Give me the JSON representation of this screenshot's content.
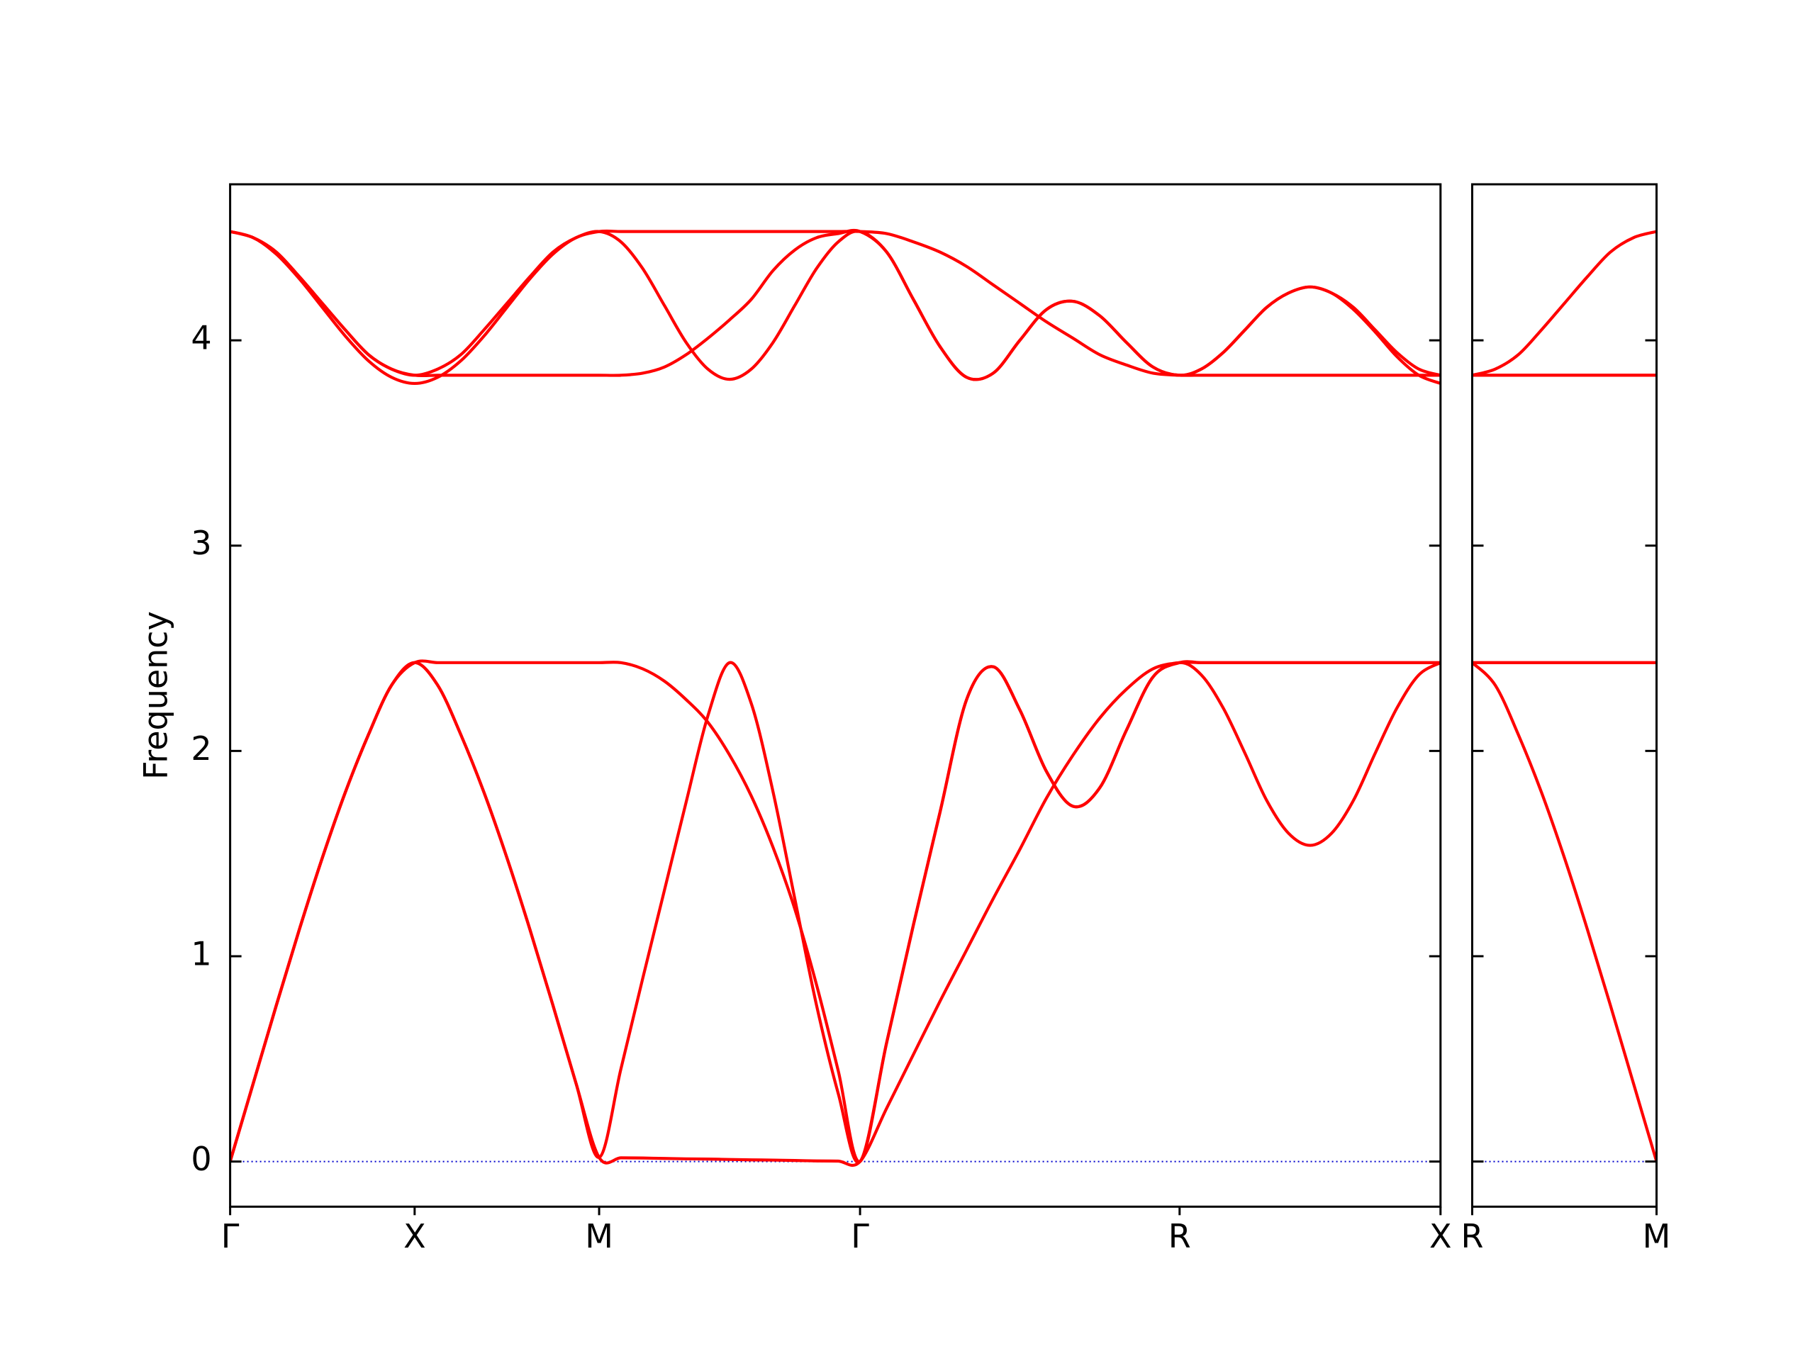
{
  "chart_data": [
    {
      "type": "line",
      "ylabel": "Frequency",
      "xlim": [
        0,
        3.2802
      ],
      "ylim": [
        -0.22,
        4.76
      ],
      "xticks": [
        {
          "value": 0,
          "label": "Γ"
        },
        {
          "value": 0.5,
          "label": "X"
        },
        {
          "value": 1.0,
          "label": "M"
        },
        {
          "value": 1.7071,
          "label": "Γ"
        },
        {
          "value": 2.5731,
          "label": "R"
        },
        {
          "value": 3.2802,
          "label": "X"
        }
      ],
      "yticks": [
        0,
        1,
        2,
        3,
        4
      ],
      "hline": 0,
      "hline_color": "#0000cd",
      "x": [
        0,
        0.0625,
        0.125,
        0.1875,
        0.25,
        0.3125,
        0.375,
        0.4375,
        0.5,
        0.5625,
        0.625,
        0.6875,
        0.75,
        0.8125,
        0.875,
        0.9375,
        1.0,
        1.0589,
        1.1179,
        1.1768,
        1.2357,
        1.2946,
        1.3536,
        1.4125,
        1.4714,
        1.5303,
        1.5893,
        1.6482,
        1.7071,
        1.7793,
        1.8514,
        1.9236,
        1.9958,
        2.0679,
        2.1401,
        2.2123,
        2.2845,
        2.3566,
        2.4288,
        2.501,
        2.5731,
        2.632,
        2.691,
        2.7499,
        2.8088,
        2.8677,
        2.9267,
        2.9856,
        3.0445,
        3.1035,
        3.1624,
        3.2213,
        3.2802
      ],
      "series": [
        {
          "color": "#ff0000",
          "values": [
            0,
            0.38,
            0.76,
            1.13,
            1.48,
            1.8,
            2.08,
            2.32,
            2.43,
            2.32,
            2.08,
            1.8,
            1.48,
            1.13,
            0.76,
            0.38,
            0.02,
            0.018,
            0.017,
            0.015,
            0.013,
            0.012,
            0.01,
            0.008,
            0.007,
            0.005,
            0.003,
            0.002,
            0,
            0.26,
            0.52,
            0.78,
            1.03,
            1.28,
            1.52,
            1.77,
            1.98,
            2.16,
            2.3,
            2.4,
            2.43,
            2.43,
            2.43,
            2.43,
            2.43,
            2.43,
            2.43,
            2.43,
            2.43,
            2.43,
            2.43,
            2.43,
            2.43
          ]
        },
        {
          "color": "#ff0000",
          "values": [
            0,
            0.38,
            0.76,
            1.13,
            1.48,
            1.8,
            2.08,
            2.32,
            2.43,
            2.32,
            2.08,
            1.8,
            1.48,
            1.13,
            0.76,
            0.38,
            0.02,
            0.45,
            0.89,
            1.32,
            1.75,
            2.17,
            2.43,
            2.23,
            1.8,
            1.28,
            0.76,
            0.33,
            0,
            0.58,
            1.15,
            1.7,
            2.25,
            2.41,
            2.2,
            1.9,
            1.73,
            1.82,
            2.1,
            2.36,
            2.43,
            2.43,
            2.43,
            2.43,
            2.43,
            2.43,
            2.43,
            2.43,
            2.43,
            2.43,
            2.43,
            2.43,
            2.43
          ]
        },
        {
          "color": "#ff0000",
          "values": [
            0,
            0.38,
            0.76,
            1.13,
            1.48,
            1.8,
            2.08,
            2.32,
            2.43,
            2.43,
            2.43,
            2.43,
            2.43,
            2.43,
            2.43,
            2.43,
            2.43,
            2.43,
            2.4,
            2.34,
            2.25,
            2.14,
            1.98,
            1.78,
            1.53,
            1.23,
            0.86,
            0.44,
            0,
            0.58,
            1.15,
            1.7,
            2.25,
            2.41,
            2.2,
            1.9,
            1.73,
            1.82,
            2.1,
            2.36,
            2.43,
            2.37,
            2.21,
            1.99,
            1.76,
            1.6,
            1.54,
            1.6,
            1.76,
            1.99,
            2.21,
            2.37,
            2.43
          ]
        },
        {
          "color": "#ff0000",
          "values": [
            4.53,
            4.5,
            4.42,
            4.3,
            4.16,
            4.02,
            3.9,
            3.82,
            3.79,
            3.82,
            3.9,
            4.02,
            4.16,
            4.3,
            4.42,
            4.5,
            4.53,
            4.53,
            4.53,
            4.53,
            4.53,
            4.53,
            4.53,
            4.53,
            4.53,
            4.53,
            4.53,
            4.53,
            4.53,
            4.52,
            4.48,
            4.43,
            4.36,
            4.27,
            4.18,
            4.09,
            4.01,
            3.93,
            3.88,
            3.84,
            3.83,
            3.83,
            3.83,
            3.83,
            3.83,
            3.83,
            3.83,
            3.83,
            3.83,
            3.83,
            3.83,
            3.83,
            3.83
          ]
        },
        {
          "color": "#ff0000",
          "values": [
            4.53,
            4.5,
            4.43,
            4.31,
            4.18,
            4.05,
            3.93,
            3.86,
            3.83,
            3.86,
            3.93,
            4.05,
            4.18,
            4.31,
            4.43,
            4.5,
            4.53,
            4.48,
            4.35,
            4.17,
            3.99,
            3.86,
            3.81,
            3.86,
            3.99,
            4.17,
            4.35,
            4.48,
            4.53,
            4.43,
            4.2,
            3.97,
            3.82,
            3.84,
            4.0,
            4.15,
            4.19,
            4.12,
            3.99,
            3.87,
            3.83,
            3.86,
            3.94,
            4.05,
            4.16,
            4.23,
            4.26,
            4.23,
            4.15,
            4.04,
            3.92,
            3.83,
            3.79
          ]
        },
        {
          "color": "#ff0000",
          "values": [
            4.53,
            4.5,
            4.43,
            4.31,
            4.18,
            4.05,
            3.93,
            3.86,
            3.83,
            3.83,
            3.83,
            3.83,
            3.83,
            3.83,
            3.83,
            3.83,
            3.83,
            3.83,
            3.84,
            3.87,
            3.93,
            4.01,
            4.1,
            4.2,
            4.34,
            4.44,
            4.5,
            4.52,
            4.53,
            4.43,
            4.2,
            3.97,
            3.82,
            3.84,
            4.0,
            4.15,
            4.19,
            4.12,
            3.99,
            3.87,
            3.83,
            3.86,
            3.94,
            4.05,
            4.16,
            4.23,
            4.26,
            4.23,
            4.16,
            4.05,
            3.94,
            3.86,
            3.83
          ]
        }
      ]
    },
    {
      "type": "line",
      "xlim": [
        3.2802,
        3.7802
      ],
      "ylim": [
        -0.22,
        4.76
      ],
      "xticks": [
        {
          "value": 3.2802,
          "label": "R"
        },
        {
          "value": 3.7802,
          "label": "M"
        }
      ],
      "yticks": [
        0,
        1,
        2,
        3,
        4
      ],
      "hline": 0,
      "hline_color": "#0000cd",
      "x": [
        3.2802,
        3.3427,
        3.4052,
        3.4677,
        3.5302,
        3.5927,
        3.6552,
        3.7177,
        3.7802
      ],
      "series": [
        {
          "color": "#ff0000",
          "values": [
            2.43,
            2.43,
            2.43,
            2.43,
            2.43,
            2.43,
            2.43,
            2.43,
            2.43
          ]
        },
        {
          "color": "#ff0000",
          "values": [
            2.43,
            2.43,
            2.43,
            2.43,
            2.43,
            2.43,
            2.43,
            2.43,
            2.43
          ]
        },
        {
          "color": "#ff0000",
          "values": [
            2.43,
            2.32,
            2.08,
            1.8,
            1.48,
            1.13,
            0.76,
            0.38,
            0
          ]
        },
        {
          "color": "#ff0000",
          "values": [
            3.83,
            3.83,
            3.83,
            3.83,
            3.83,
            3.83,
            3.83,
            3.83,
            3.83
          ]
        },
        {
          "color": "#ff0000",
          "values": [
            3.83,
            3.83,
            3.83,
            3.83,
            3.83,
            3.83,
            3.83,
            3.83,
            3.83
          ]
        },
        {
          "color": "#ff0000",
          "values": [
            3.83,
            3.86,
            3.93,
            4.05,
            4.18,
            4.31,
            4.43,
            4.5,
            4.53
          ]
        }
      ]
    }
  ]
}
